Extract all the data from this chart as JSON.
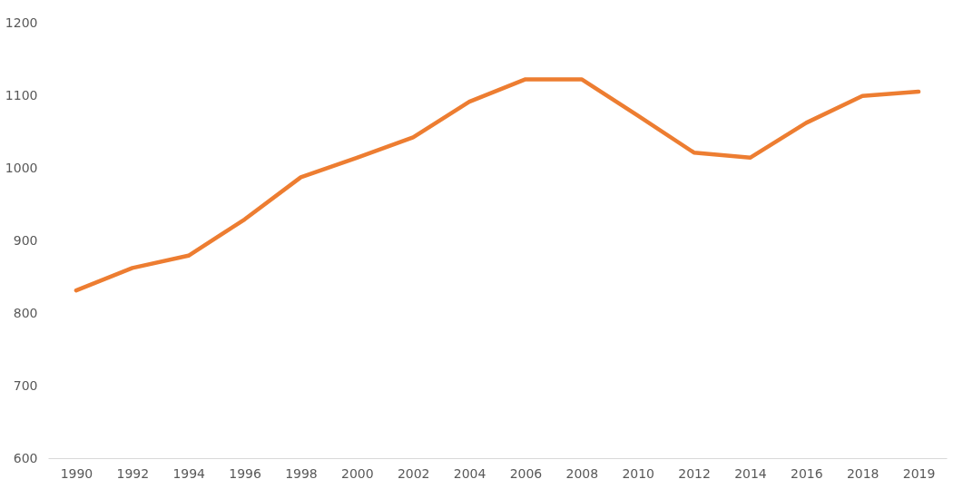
{
  "chart_data": {
    "type": "line",
    "categories": [
      "1990",
      "1992",
      "1994",
      "1996",
      "1998",
      "2000",
      "2002",
      "2004",
      "2006",
      "2008",
      "2010",
      "2012",
      "2014",
      "2016",
      "2018",
      "2019"
    ],
    "series": [
      {
        "color": "#ed7d31",
        "values": [
          831,
          862,
          879,
          929,
          987,
          1014,
          1042,
          1091,
          1122,
          1122,
          1072,
          1021,
          1014,
          1062,
          1099,
          1105
        ]
      }
    ],
    "ylim": [
      600,
      1200
    ],
    "yticks": [
      600,
      700,
      800,
      900,
      1000,
      1100,
      1200
    ],
    "grid": false
  }
}
